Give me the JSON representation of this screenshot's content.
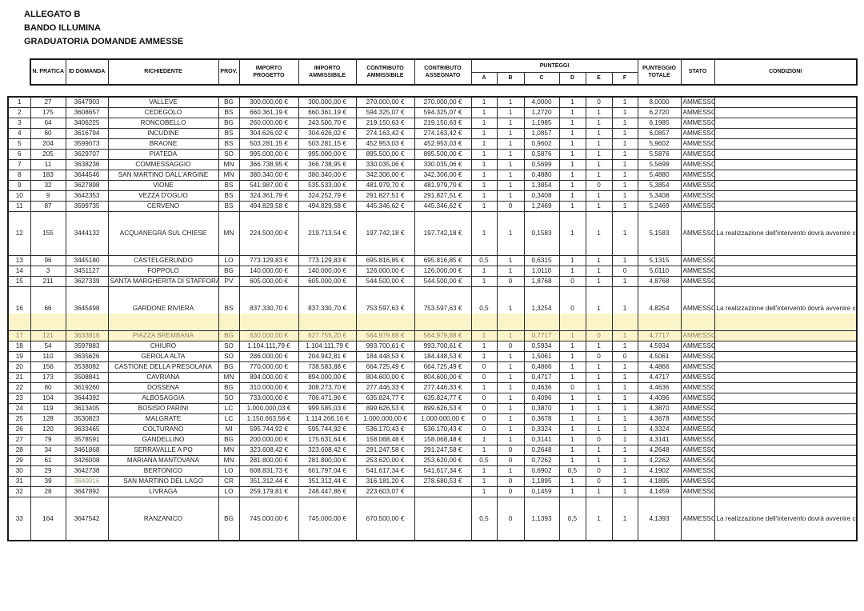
{
  "titles": [
    "ALLEGATO B",
    "BANDO ILLUMINA",
    "GRADUATORIA DOMANDE AMMESSE"
  ],
  "header": {
    "n_pratica": "N. PRATICA",
    "id_domanda": "ID DOMANDA",
    "richiedente": "RICHIEDENTE",
    "prov": "PROV.",
    "importo_progetto": "IMPORTO PROGETTO",
    "importo_ammissibile": "IMPORTO AMMISSIBILE",
    "contributo_ammissibile": "CONTRIBUTO AMMISSIBILE",
    "contributo_assegnato": "CONTRIBUTO ASSEGNATO",
    "punteggi": "PUNTEGGI",
    "punteggi_cols": [
      "A",
      "B",
      "C",
      "D",
      "E",
      "F"
    ],
    "punteggio_totale": "PUNTEGGIO TOTALE",
    "stato": "STATO",
    "condizioni": "CONDIZIONI"
  },
  "conditions_text": "La realizzazione dell'intervento dovrà avvenire coerentemente con le prescrizioni di cui al paragrafo B.4 del bando",
  "highlight_color": "#fbf4c9",
  "rows": [
    {
      "rank": "1",
      "pratica": "27",
      "id": "3647903",
      "richiedente": "VALLEVE",
      "prov": "BG",
      "prog": "300.000,00 €",
      "amm": "300.000,00 €",
      "contr_amm": "270.000,00 €",
      "contr_ass": "270.000,00 €",
      "a": "1",
      "b": "1",
      "c": "4,0000",
      "d": "1",
      "e": "0",
      "f": "1",
      "tot": "8,0000",
      "stato": "AMMESSO",
      "cond": false
    },
    {
      "rank": "2",
      "pratica": "175",
      "id": "3608657",
      "richiedente": "CEDEGOLO",
      "prov": "BS",
      "prog": "660.361,19 €",
      "amm": "660.361,19 €",
      "contr_amm": "594.325,07 €",
      "contr_ass": "594.325,07 €",
      "a": "1",
      "b": "1",
      "c": "1,2720",
      "d": "1",
      "e": "1",
      "f": "1",
      "tot": "6,2720",
      "stato": "AMMESSO",
      "cond": false
    },
    {
      "rank": "3",
      "pratica": "64",
      "id": "3406225",
      "richiedente": "RONCOBELLO",
      "prov": "BG",
      "prog": "260.000,00 €",
      "amm": "243.500,70 €",
      "contr_amm": "219.150,63 €",
      "contr_ass": "219.150,63 €",
      "a": "1",
      "b": "1",
      "c": "1,1985",
      "d": "1",
      "e": "1",
      "f": "1",
      "tot": "6,1985",
      "stato": "AMMESSO",
      "cond": false
    },
    {
      "rank": "4",
      "pratica": "60",
      "id": "3616794",
      "richiedente": "INCUDINE",
      "prov": "BS",
      "prog": "304.626,02 €",
      "amm": "304.626,02 €",
      "contr_amm": "274.163,42 €",
      "contr_ass": "274.163,42 €",
      "a": "1",
      "b": "1",
      "c": "1,0857",
      "d": "1",
      "e": "1",
      "f": "1",
      "tot": "6,0857",
      "stato": "AMMESSO",
      "cond": false
    },
    {
      "rank": "5",
      "pratica": "204",
      "id": "3599073",
      "richiedente": "BRAONE",
      "prov": "BS",
      "prog": "503.281,15 €",
      "amm": "503.281,15 €",
      "contr_amm": "452.953,03 €",
      "contr_ass": "452.953,03 €",
      "a": "1",
      "b": "1",
      "c": "0,9602",
      "d": "1",
      "e": "1",
      "f": "1",
      "tot": "5,9602",
      "stato": "AMMESSO",
      "cond": false
    },
    {
      "rank": "6",
      "pratica": "205",
      "id": "3629707",
      "richiedente": "PIATEDA",
      "prov": "SO",
      "prog": "995.000,00 €",
      "amm": "995.000,00 €",
      "contr_amm": "895.500,00 €",
      "contr_ass": "895.500,00 €",
      "a": "1",
      "b": "1",
      "c": "0,5876",
      "d": "1",
      "e": "1",
      "f": "1",
      "tot": "5,5876",
      "stato": "AMMESSO",
      "cond": false
    },
    {
      "rank": "7",
      "pratica": "11",
      "id": "3638236",
      "richiedente": "COMMESSAGGIO",
      "prov": "MN",
      "prog": "366.738,95 €",
      "amm": "366.738,95 €",
      "contr_amm": "330.035,06 €",
      "contr_ass": "330.035,06 €",
      "a": "1",
      "b": "1",
      "c": "0,5699",
      "d": "1",
      "e": "1",
      "f": "1",
      "tot": "5,5699",
      "stato": "AMMESSO",
      "cond": false
    },
    {
      "rank": "8",
      "pratica": "183",
      "id": "3644546",
      "richiedente": "SAN MARTINO DALL'ARGINE",
      "prov": "MN",
      "prog": "380.340,00 €",
      "amm": "380.340,00 €",
      "contr_amm": "342.306,00 €",
      "contr_ass": "342.306,00 €",
      "a": "1",
      "b": "1",
      "c": "0,4880",
      "d": "1",
      "e": "1",
      "f": "1",
      "tot": "5,4880",
      "stato": "AMMESSO",
      "cond": false
    },
    {
      "rank": "9",
      "pratica": "32",
      "id": "3627898",
      "richiedente": "VIONE",
      "prov": "BS",
      "prog": "541.987,00 €",
      "amm": "535.533,00 €",
      "contr_amm": "481.979,70 €",
      "contr_ass": "481.979,70 €",
      "a": "1",
      "b": "1",
      "c": "1,3854",
      "d": "1",
      "e": "0",
      "f": "1",
      "tot": "5,3854",
      "stato": "AMMESSO",
      "cond": false
    },
    {
      "rank": "10",
      "pratica": "9",
      "id": "3642353",
      "richiedente": "VEZZA D'OGLIO",
      "prov": "BS",
      "prog": "324.361,79 €",
      "amm": "324.252,79 €",
      "contr_amm": "291.827,51 €",
      "contr_ass": "291.827,51 €",
      "a": "1",
      "b": "1",
      "c": "0,3408",
      "d": "1",
      "e": "1",
      "f": "1",
      "tot": "5,3408",
      "stato": "AMMESSO",
      "cond": false
    },
    {
      "rank": "11",
      "pratica": "87",
      "id": "3599735",
      "richiedente": "CERVENO",
      "prov": "BS",
      "prog": "494.829,58 €",
      "amm": "494.829,58 €",
      "contr_amm": "445.346,62 €",
      "contr_ass": "445.346,62 €",
      "a": "1",
      "b": "0",
      "c": "1,2469",
      "d": "1",
      "e": "1",
      "f": "1",
      "tot": "5,2469",
      "stato": "AMMESSO",
      "cond": false
    },
    {
      "rank": "12",
      "pratica": "155",
      "id": "3444132",
      "richiedente": "ACQUANEGRA SUL CHIESE",
      "prov": "MN",
      "prog": "224.500,00 €",
      "amm": "219.713,54 €",
      "contr_amm": "197.742,18 €",
      "contr_ass": "197.742,18 €",
      "a": "1",
      "b": "1",
      "c": "0,1583",
      "d": "1",
      "e": "1",
      "f": "1",
      "tot": "5,1583",
      "stato": "AMMESSO",
      "cond": true
    },
    {
      "rank": "13",
      "pratica": "96",
      "id": "3445180",
      "richiedente": "CASTELGERUNDO",
      "prov": "LO",
      "prog": "773.129,83 €",
      "amm": "773.129,83 €",
      "contr_amm": "695.816,85 €",
      "contr_ass": "695.816,85 €",
      "a": "0,5",
      "b": "1",
      "c": "0,6315",
      "d": "1",
      "e": "1",
      "f": "1",
      "tot": "5,1315",
      "stato": "AMMESSO",
      "cond": false
    },
    {
      "rank": "14",
      "pratica": "3",
      "id": "3451127",
      "richiedente": "FOPPOLO",
      "prov": "BG",
      "prog": "140.000,00 €",
      "amm": "140.000,00 €",
      "contr_amm": "126.000,00 €",
      "contr_ass": "126.000,00 €",
      "a": "1",
      "b": "1",
      "c": "1,0110",
      "d": "1",
      "e": "1",
      "f": "0",
      "tot": "5,0110",
      "stato": "AMMESSO",
      "cond": false
    },
    {
      "rank": "15",
      "pratica": "211",
      "id": "3627339",
      "richiedente": "SANTA MARGHERITA DI STAFFORA",
      "prov": "PV",
      "prog": "605.000,00 €",
      "amm": "605.000,00 €",
      "contr_amm": "544.500,00 €",
      "contr_ass": "544.500,00 €",
      "a": "1",
      "b": "0",
      "c": "1,8768",
      "d": "0",
      "e": "1",
      "f": "1",
      "tot": "4,8768",
      "stato": "AMMESSO",
      "cond": false
    },
    {
      "rank": "16",
      "pratica": "66",
      "id": "3645498",
      "richiedente": "GARDONE RIVIERA",
      "prov": "BS",
      "prog": "837.330,70 €",
      "amm": "837.330,70 €",
      "contr_amm": "753.597,63 €",
      "contr_ass": "753.597,63 €",
      "a": "0,5",
      "b": "1",
      "c": "1,3254",
      "d": "0",
      "e": "1",
      "f": "1",
      "tot": "4,8254",
      "stato": "AMMESSO",
      "cond": true,
      "style": "part"
    },
    {
      "rank": "17",
      "pratica": "121",
      "id": "3633816",
      "richiedente": "PIAZZA BREMBANA",
      "prov": "BG",
      "prog": "630.000,00 €",
      "amm": "627.755,20 €",
      "contr_amm": "564.979,68 €",
      "contr_ass": "564.979,68 €",
      "a": "1",
      "b": "1",
      "c": "0,7717",
      "d": "1",
      "e": "0",
      "f": "1",
      "tot": "4,7717",
      "stato": "AMMESSO",
      "cond": false,
      "style": "hl"
    },
    {
      "rank": "18",
      "pratica": "54",
      "id": "3597883",
      "richiedente": "CHIURO",
      "prov": "SO",
      "prog": "1.104.111,79 €",
      "amm": "1.104.111,79 €",
      "contr_amm": "993.700,61 €",
      "contr_ass": "993.700,61 €",
      "a": "1",
      "b": "0",
      "c": "0,5934",
      "d": "1",
      "e": "1",
      "f": "1",
      "tot": "4,5934",
      "stato": "AMMESSO",
      "cond": false
    },
    {
      "rank": "19",
      "pratica": "110",
      "id": "3635626",
      "richiedente": "GEROLA ALTA",
      "prov": "SO",
      "prog": "286.000,00 €",
      "amm": "204.942,81 €",
      "contr_amm": "184.448,53 €",
      "contr_ass": "184.448,53 €",
      "a": "1",
      "b": "1",
      "c": "1,5061",
      "d": "1",
      "e": "0",
      "f": "0",
      "tot": "4,5061",
      "stato": "AMMESSO",
      "cond": false
    },
    {
      "rank": "20",
      "pratica": "156",
      "id": "3538082",
      "richiedente": "CASTIONE DELLA PRESOLANA",
      "prov": "BG",
      "prog": "770.000,00 €",
      "amm": "738.583,88 €",
      "contr_amm": "664.725,49 €",
      "contr_ass": "664.725,49 €",
      "a": "0",
      "b": "1",
      "c": "0,4866",
      "d": "1",
      "e": "1",
      "f": "1",
      "tot": "4,4866",
      "stato": "AMMESSO",
      "cond": false
    },
    {
      "rank": "21",
      "pratica": "173",
      "id": "3508841",
      "richiedente": "CAVRIANA",
      "prov": "MN",
      "prog": "894.000,00 €",
      "amm": "894.000,00 €",
      "contr_amm": "804.600,00 €",
      "contr_ass": "804.600,00 €",
      "a": "0",
      "b": "1",
      "c": "0,4717",
      "d": "1",
      "e": "1",
      "f": "1",
      "tot": "4,4717",
      "stato": "AMMESSO",
      "cond": false
    },
    {
      "rank": "22",
      "pratica": "80",
      "id": "3619260",
      "richiedente": "DOSSENA",
      "prov": "BG",
      "prog": "310.000,00 €",
      "amm": "308.273,70 €",
      "contr_amm": "277.446,33 €",
      "contr_ass": "277.446,33 €",
      "a": "1",
      "b": "1",
      "c": "0,4636",
      "d": "0",
      "e": "1",
      "f": "1",
      "tot": "4,4636",
      "stato": "AMMESSO",
      "cond": false
    },
    {
      "rank": "23",
      "pratica": "104",
      "id": "3644392",
      "richiedente": "ALBOSAGGIA",
      "prov": "SO",
      "prog": "733.000,00 €",
      "amm": "706.471,96 €",
      "contr_amm": "635.824,77 €",
      "contr_ass": "635.824,77 €",
      "a": "0",
      "b": "1",
      "c": "0,4096",
      "d": "1",
      "e": "1",
      "f": "1",
      "tot": "4,4096",
      "stato": "AMMESSO",
      "cond": false
    },
    {
      "rank": "24",
      "pratica": "119",
      "id": "3613405",
      "richiedente": "BOSISIO PARINI",
      "prov": "LC",
      "prog": "1.000.000,03 €",
      "amm": "999.585,03 €",
      "contr_amm": "899.626,53 €",
      "contr_ass": "899.626,53 €",
      "a": "0",
      "b": "1",
      "c": "0,3870",
      "d": "1",
      "e": "1",
      "f": "1",
      "tot": "4,3870",
      "stato": "AMMESSO",
      "cond": false
    },
    {
      "rank": "25",
      "pratica": "128",
      "id": "3530823",
      "richiedente": "MALGRATE",
      "prov": "LC",
      "prog": "1.150.663,56 €",
      "amm": "1.114.266,16 €",
      "contr_amm": "1.000.000,00 €",
      "contr_ass": "1.000.000,00 €",
      "a": "0",
      "b": "1",
      "c": "0,3678",
      "d": "1",
      "e": "1",
      "f": "1",
      "tot": "4,3678",
      "stato": "AMMESSO",
      "cond": false
    },
    {
      "rank": "26",
      "pratica": "120",
      "id": "3633465",
      "richiedente": "COLTURANO",
      "prov": "MI",
      "prog": "595.744,92 €",
      "amm": "595.744,92 €",
      "contr_amm": "536.170,43 €",
      "contr_ass": "536.170,43 €",
      "a": "0",
      "b": "1",
      "c": "0,3324",
      "d": "1",
      "e": "1",
      "f": "1",
      "tot": "4,3324",
      "stato": "AMMESSO",
      "cond": false
    },
    {
      "rank": "27",
      "pratica": "79",
      "id": "3578591",
      "richiedente": "GANDELLINO",
      "prov": "BG",
      "prog": "200.000,00 €",
      "amm": "175.631,64 €",
      "contr_amm": "158.068,48 €",
      "contr_ass": "158.068,48 €",
      "a": "1",
      "b": "1",
      "c": "0,3141",
      "d": "1",
      "e": "0",
      "f": "1",
      "tot": "4,3141",
      "stato": "AMMESSO",
      "cond": false
    },
    {
      "rank": "28",
      "pratica": "34",
      "id": "3461868",
      "richiedente": "SERRAVALLE A PO",
      "prov": "MN",
      "prog": "323.608,42 €",
      "amm": "323.608,42 €",
      "contr_amm": "291.247,58 €",
      "contr_ass": "291.247,58 €",
      "a": "1",
      "b": "0",
      "c": "0,2648",
      "d": "1",
      "e": "1",
      "f": "1",
      "tot": "4,2648",
      "stato": "AMMESSO",
      "cond": false
    },
    {
      "rank": "29",
      "pratica": "61",
      "id": "3426008",
      "richiedente": "MARIANA MANTOVANA",
      "prov": "MN",
      "prog": "281.800,00 €",
      "amm": "281.800,00 €",
      "contr_amm": "253.620,00 €",
      "contr_ass": "253.620,00 €",
      "a": "0,5",
      "b": "0",
      "c": "0,7262",
      "d": "1",
      "e": "1",
      "f": "1",
      "tot": "4,2262",
      "stato": "AMMESSO",
      "cond": false
    },
    {
      "rank": "30",
      "pratica": "29",
      "id": "3642738",
      "richiedente": "BERTONICO",
      "prov": "LO",
      "prog": "608.831,73 €",
      "amm": "601.797,04 €",
      "contr_amm": "541.617,34 €",
      "contr_ass": "541.617,34 €",
      "a": "1",
      "b": "1",
      "c": "0,6902",
      "d": "0,5",
      "e": "0",
      "f": "1",
      "tot": "4,1902",
      "stato": "AMMESSO",
      "cond": false
    },
    {
      "rank": "31",
      "pratica": "39",
      "id": "3640016",
      "richiedente": "SAN MARTINO DEL LAGO",
      "prov": "CR",
      "prog": "351.312,44 €",
      "amm": "351.312,44 €",
      "contr_amm": "316.181,20 €",
      "contr_ass": "278.680,53 €",
      "a": "1",
      "b": "0",
      "c": "1,1895",
      "d": "1",
      "e": "0",
      "f": "1",
      "tot": "4,1895",
      "stato": "AMMESSO",
      "cond": false,
      "id_muted": true
    },
    {
      "rank": "32",
      "pratica": "28",
      "id": "3647892",
      "richiedente": "LIVRAGA",
      "prov": "LO",
      "prog": "259.179,81 €",
      "amm": "248.447,86 €",
      "contr_amm": "223.603,07 €",
      "contr_ass": "",
      "a": "1",
      "b": "0",
      "c": "0,1459",
      "d": "1",
      "e": "1",
      "f": "1",
      "tot": "4,1459",
      "stato": "AMMESSO",
      "cond": false
    },
    {
      "rank": "33",
      "pratica": "164",
      "id": "3647542",
      "richiedente": "RANZANICO",
      "prov": "BG",
      "prog": "745.000,00 €",
      "amm": "745.000,00 €",
      "contr_amm": "670.500,00 €",
      "contr_ass": "",
      "a": "0,5",
      "b": "0",
      "c": "1,1393",
      "d": "0,5",
      "e": "1",
      "f": "1",
      "tot": "4,1393",
      "stato": "AMMESSO",
      "cond": true
    }
  ]
}
